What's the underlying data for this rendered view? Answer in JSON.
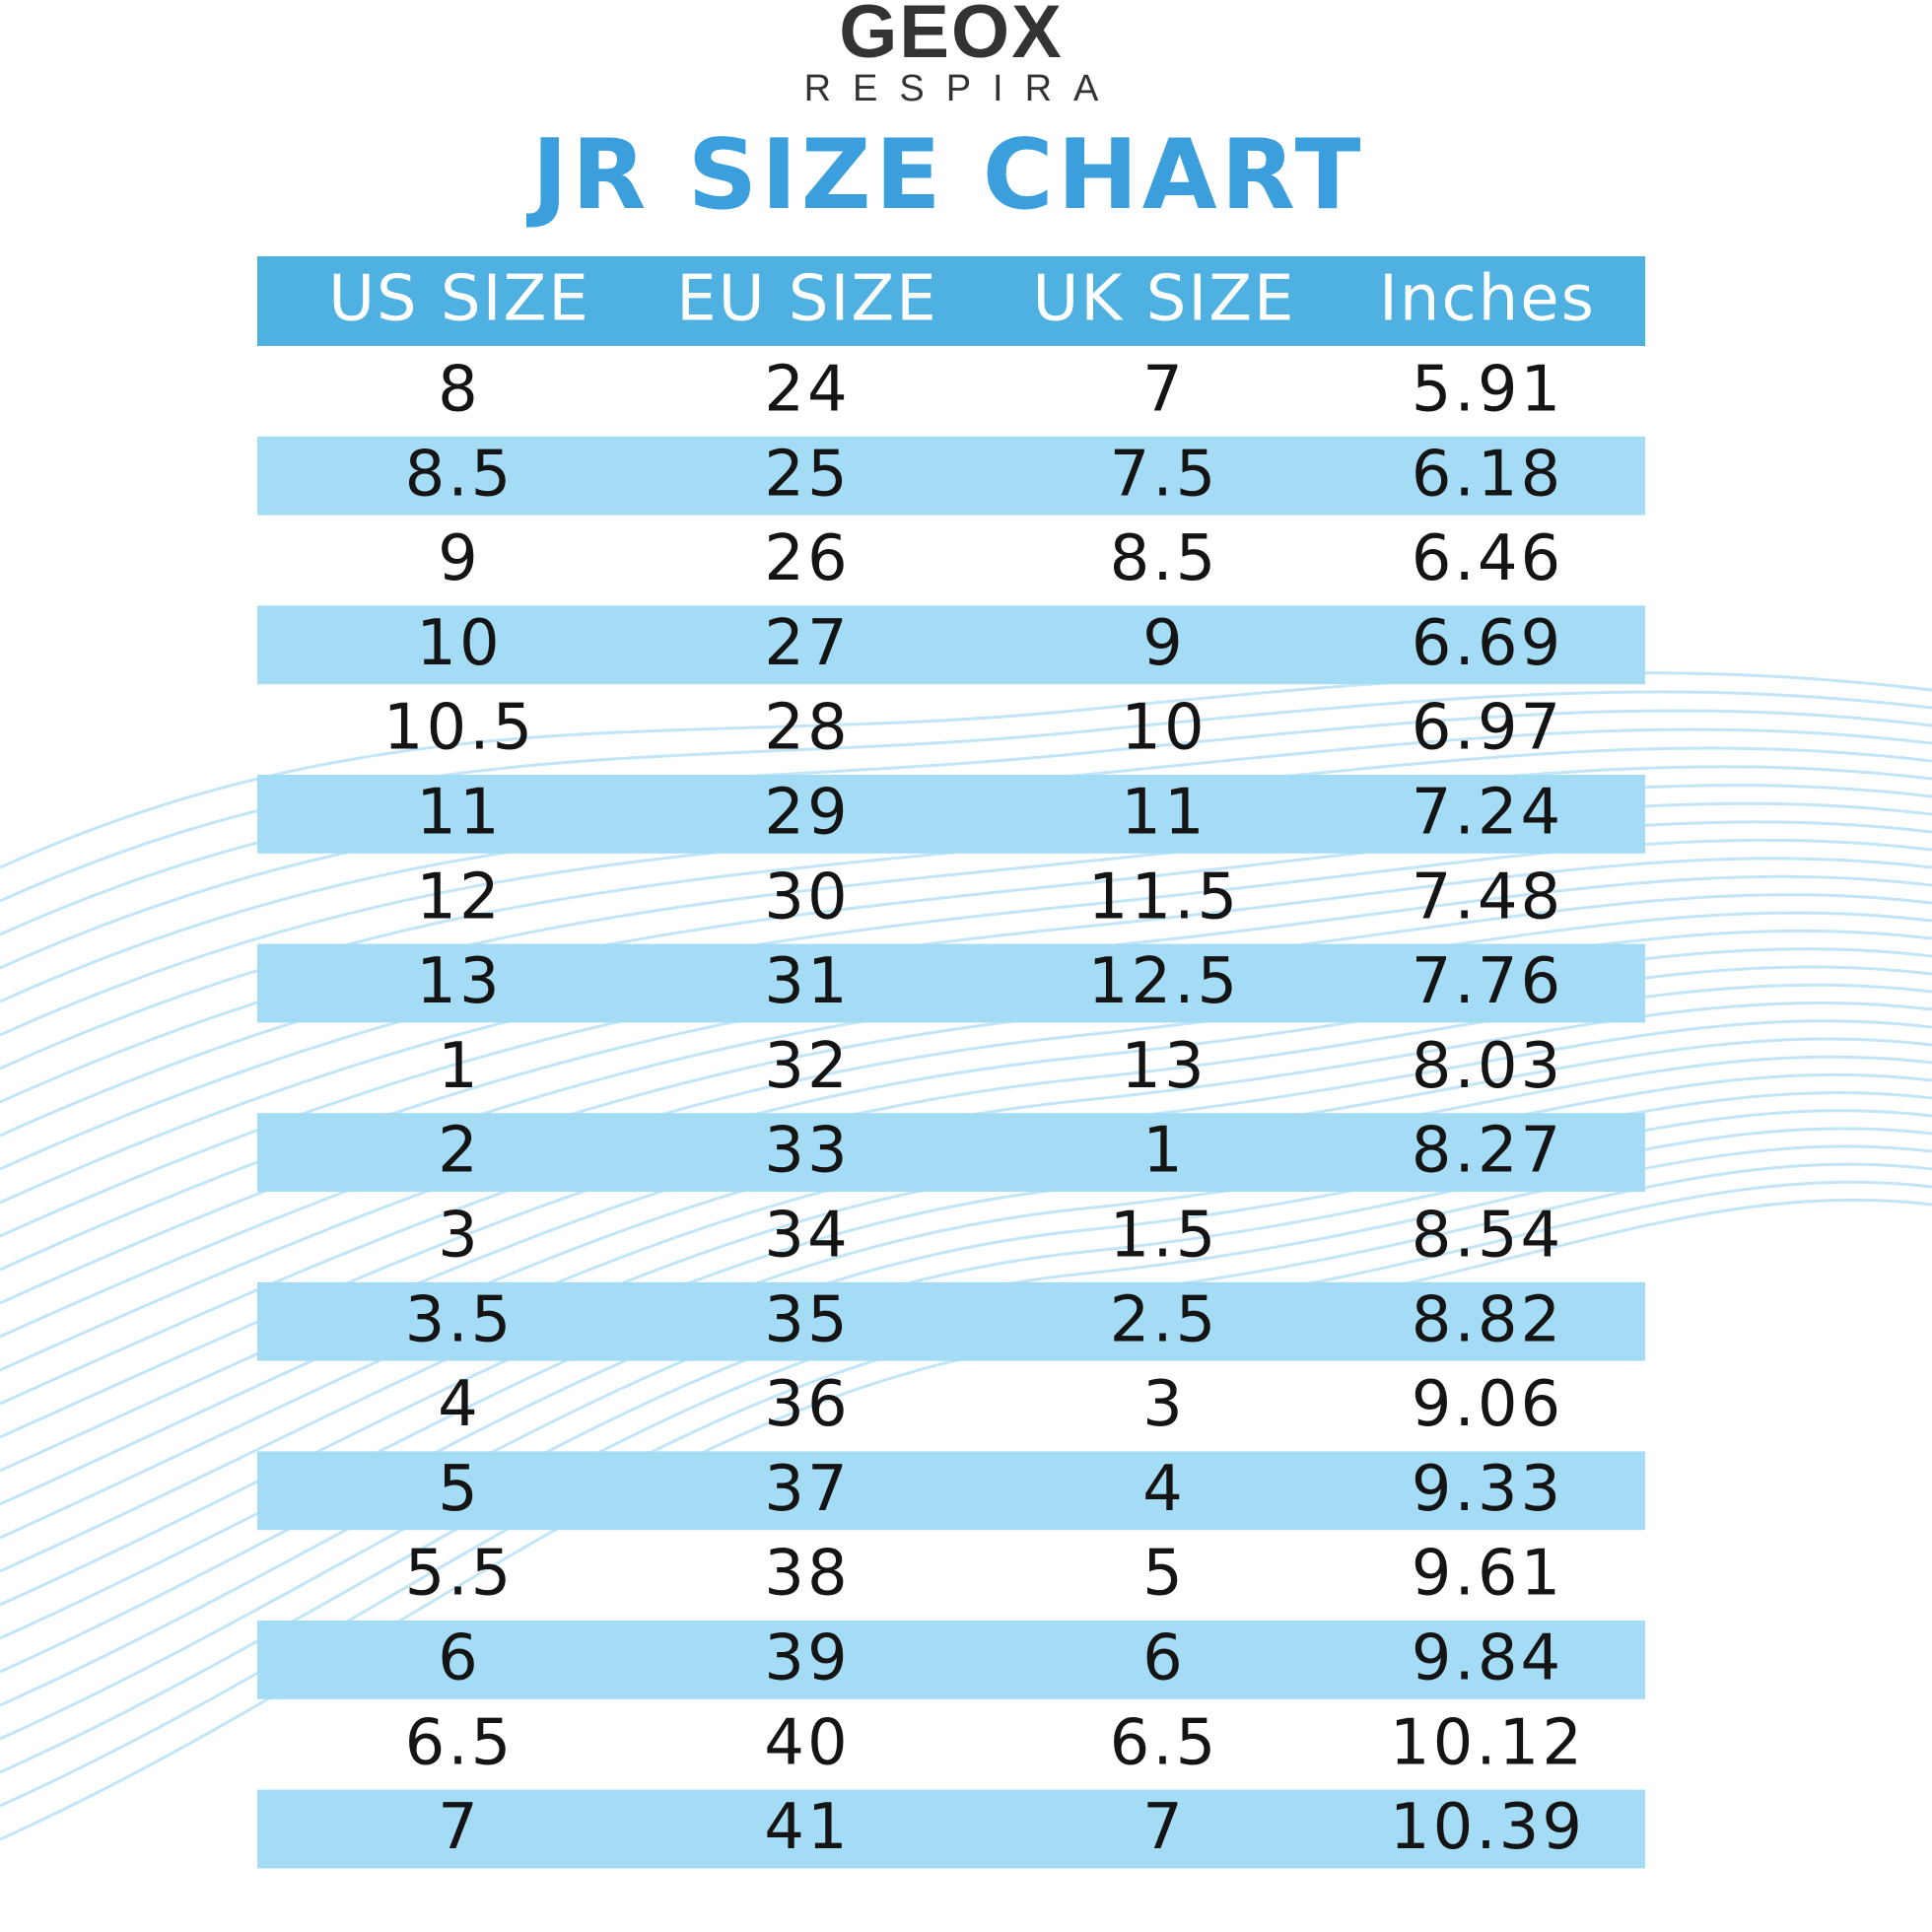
{
  "header": {
    "brand": "GEOX",
    "tagline": "RESPIRA",
    "title": "JR SIZE CHART"
  },
  "table": {
    "columns": [
      "US SIZE",
      "EU SIZE",
      "UK SIZE",
      "Inches"
    ],
    "rows": [
      [
        "8",
        "24",
        "7",
        "5.91"
      ],
      [
        "8.5",
        "25",
        "7.5",
        "6.18"
      ],
      [
        "9",
        "26",
        "8.5",
        "6.46"
      ],
      [
        "10",
        "27",
        "9",
        "6.69"
      ],
      [
        "10.5",
        "28",
        "10",
        "6.97"
      ],
      [
        "11",
        "29",
        "11",
        "7.24"
      ],
      [
        "12",
        "30",
        "11.5",
        "7.48"
      ],
      [
        "13",
        "31",
        "12.5",
        "7.76"
      ],
      [
        "1",
        "32",
        "13",
        "8.03"
      ],
      [
        "2",
        "33",
        "1",
        "8.27"
      ],
      [
        "3",
        "34",
        "1.5",
        "8.54"
      ],
      [
        "3.5",
        "35",
        "2.5",
        "8.82"
      ],
      [
        "4",
        "36",
        "3",
        "9.06"
      ],
      [
        "5",
        "37",
        "4",
        "9.33"
      ],
      [
        "5.5",
        "38",
        "5",
        "9.61"
      ],
      [
        "6",
        "39",
        "6",
        "9.84"
      ],
      [
        "6.5",
        "40",
        "6.5",
        "10.12"
      ],
      [
        "7",
        "41",
        "7",
        "10.39"
      ]
    ]
  }
}
